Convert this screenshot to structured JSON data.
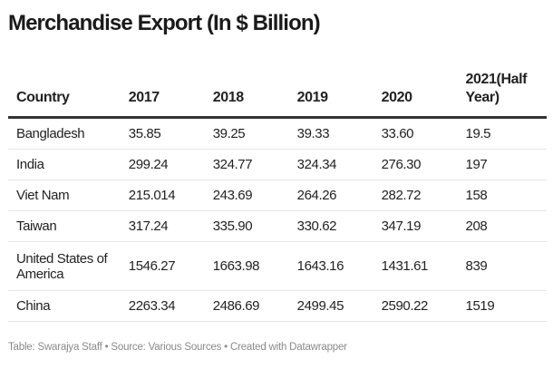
{
  "title": "Merchandise Export (In $ Billion)",
  "chart_data": {
    "type": "table",
    "title": "Merchandise Export (In $ Billion)",
    "columns": [
      "Country",
      "2017",
      "2018",
      "2019",
      "2020",
      "2021(Half Year)"
    ],
    "rows": [
      [
        "Bangladesh",
        "35.85",
        "39.25",
        "39.33",
        "33.60",
        "19.5"
      ],
      [
        "India",
        "299.24",
        "324.77",
        "324.34",
        "276.30",
        "197"
      ],
      [
        "Viet Nam",
        "215.014",
        "243.69",
        "264.26",
        "282.72",
        "158"
      ],
      [
        "Taiwan",
        "317.24",
        "335.90",
        "330.62",
        "347.19",
        "208"
      ],
      [
        "United States of America",
        "1546.27",
        "1663.98",
        "1643.16",
        "1431.61",
        "839"
      ],
      [
        "China",
        "2263.34",
        "2486.69",
        "2499.45",
        "2590.22",
        "1519"
      ]
    ]
  },
  "footer": "Table: Swarajya Staff • Source: Various Sources • Created with Datawrapper"
}
